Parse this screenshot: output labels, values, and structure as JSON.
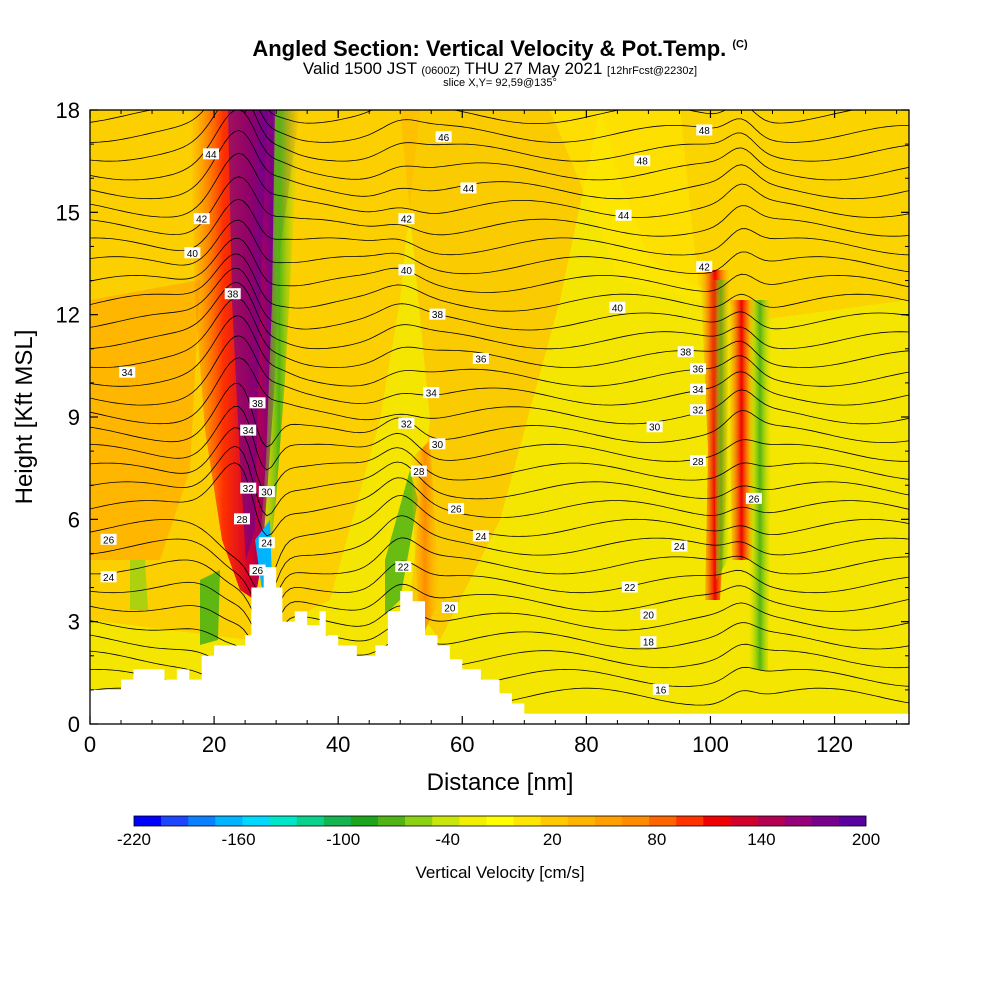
{
  "title": "Angled Section: Vertical Velocity & Pot.Temp.",
  "title_units": "(C)",
  "subtitle_main": "Valid 1500 JST",
  "subtitle_z": "(0600Z)",
  "subtitle_date": "THU 27 May 2021",
  "subtitle_fcst": "[12hrFcst@2230z]",
  "slice_label": "slice X,Y= 92,59@135°",
  "colorbar_title": "Vertical Velocity [cm/s]",
  "colorbar_ticks": [
    "-220",
    "-160",
    "-100",
    "-40",
    "20",
    "80",
    "140",
    "200"
  ],
  "colorbar_colors": [
    "#0000ff",
    "#1e46ff",
    "#0a82ff",
    "#00b4ff",
    "#00d8ff",
    "#00e6c8",
    "#0ad28c",
    "#14b450",
    "#1ea51e",
    "#50b414",
    "#8cd214",
    "#c8e60a",
    "#f0f000",
    "#ffff00",
    "#ffe600",
    "#ffc800",
    "#ffb400",
    "#ffa000",
    "#ff8c00",
    "#ff6400",
    "#ff3200",
    "#f00000",
    "#d2002d",
    "#b40050",
    "#960078",
    "#78008c",
    "#5a00a0"
  ],
  "chart_data": {
    "type": "heatmap",
    "xlabel": "Distance [nm]",
    "ylabel": "Height [Kft MSL]",
    "xlim": [
      0,
      132
    ],
    "ylim": [
      0,
      18
    ],
    "xticks": [
      0,
      20,
      40,
      60,
      80,
      100,
      120
    ],
    "yticks": [
      0,
      3,
      6,
      9,
      12,
      15,
      18
    ],
    "velocity_range_cms": [
      -220,
      200
    ],
    "contour_variable": "Potential temperature (C)",
    "terrain_kft": [
      [
        0,
        1
      ],
      [
        3,
        1
      ],
      [
        5,
        1.3
      ],
      [
        7,
        1.6
      ],
      [
        9,
        1.6
      ],
      [
        12,
        1.3
      ],
      [
        14,
        1.6
      ],
      [
        16,
        1.3
      ],
      [
        18,
        2
      ],
      [
        20,
        2.3
      ],
      [
        23,
        2.3
      ],
      [
        25,
        2.6
      ],
      [
        26,
        4
      ],
      [
        28,
        4.6
      ],
      [
        30,
        4
      ],
      [
        31,
        3
      ],
      [
        33,
        3.3
      ],
      [
        35,
        2.9
      ],
      [
        37,
        3.3
      ],
      [
        38,
        2.6
      ],
      [
        40,
        2.3
      ],
      [
        43,
        2
      ],
      [
        46,
        2.3
      ],
      [
        48,
        3.3
      ],
      [
        50,
        3.9
      ],
      [
        52,
        3.6
      ],
      [
        54,
        2.6
      ],
      [
        56,
        2.3
      ],
      [
        58,
        1.9
      ],
      [
        60,
        1.6
      ],
      [
        63,
        1.3
      ],
      [
        66,
        0.9
      ],
      [
        68,
        0.6
      ],
      [
        70,
        0.3
      ],
      [
        72,
        0.3
      ],
      [
        132,
        0.3
      ]
    ],
    "theta_contour_labels": [
      {
        "text": "48",
        "x": 99,
        "y": 17.4
      },
      {
        "text": "48",
        "x": 89,
        "y": 16.5
      },
      {
        "text": "46",
        "x": 57,
        "y": 17.2
      },
      {
        "text": "44",
        "x": 19.5,
        "y": 16.7
      },
      {
        "text": "44",
        "x": 61,
        "y": 15.7
      },
      {
        "text": "44",
        "x": 86,
        "y": 14.9
      },
      {
        "text": "42",
        "x": 18,
        "y": 14.8
      },
      {
        "text": "42",
        "x": 51,
        "y": 14.8
      },
      {
        "text": "42",
        "x": 99,
        "y": 13.4
      },
      {
        "text": "40",
        "x": 16.5,
        "y": 13.8
      },
      {
        "text": "40",
        "x": 51,
        "y": 13.3
      },
      {
        "text": "40",
        "x": 85,
        "y": 12.2
      },
      {
        "text": "38",
        "x": 23,
        "y": 12.6
      },
      {
        "text": "38",
        "x": 56,
        "y": 12.0
      },
      {
        "text": "38",
        "x": 96,
        "y": 10.9
      },
      {
        "text": "38",
        "x": 27,
        "y": 9.4
      },
      {
        "text": "36",
        "x": 63,
        "y": 10.7
      },
      {
        "text": "36",
        "x": 98,
        "y": 10.4
      },
      {
        "text": "34",
        "x": 6,
        "y": 10.3
      },
      {
        "text": "34",
        "x": 55,
        "y": 9.7
      },
      {
        "text": "34",
        "x": 98,
        "y": 9.8
      },
      {
        "text": "34",
        "x": 25.5,
        "y": 8.6
      },
      {
        "text": "32",
        "x": 51,
        "y": 8.8
      },
      {
        "text": "32",
        "x": 98,
        "y": 9.2
      },
      {
        "text": "32",
        "x": 25.5,
        "y": 6.9
      },
      {
        "text": "30",
        "x": 28.5,
        "y": 6.8
      },
      {
        "text": "30",
        "x": 56,
        "y": 8.2
      },
      {
        "text": "30",
        "x": 91,
        "y": 8.7
      },
      {
        "text": "28",
        "x": 24.5,
        "y": 6.0
      },
      {
        "text": "28",
        "x": 53,
        "y": 7.4
      },
      {
        "text": "28",
        "x": 98,
        "y": 7.7
      },
      {
        "text": "26",
        "x": 107,
        "y": 6.6
      },
      {
        "text": "26",
        "x": 3,
        "y": 5.4
      },
      {
        "text": "26",
        "x": 59,
        "y": 6.3
      },
      {
        "text": "26",
        "x": 27,
        "y": 4.5
      },
      {
        "text": "24",
        "x": 28.5,
        "y": 5.3
      },
      {
        "text": "24",
        "x": 63,
        "y": 5.5
      },
      {
        "text": "24",
        "x": 95,
        "y": 5.2
      },
      {
        "text": "24",
        "x": 3,
        "y": 4.3
      },
      {
        "text": "22",
        "x": 50.5,
        "y": 4.6
      },
      {
        "text": "22",
        "x": 87,
        "y": 4.0
      },
      {
        "text": "20",
        "x": 58,
        "y": 3.4
      },
      {
        "text": "20",
        "x": 90,
        "y": 3.2
      },
      {
        "text": "18",
        "x": 90,
        "y": 2.4
      },
      {
        "text": "16",
        "x": 92,
        "y": 1.0
      }
    ]
  }
}
